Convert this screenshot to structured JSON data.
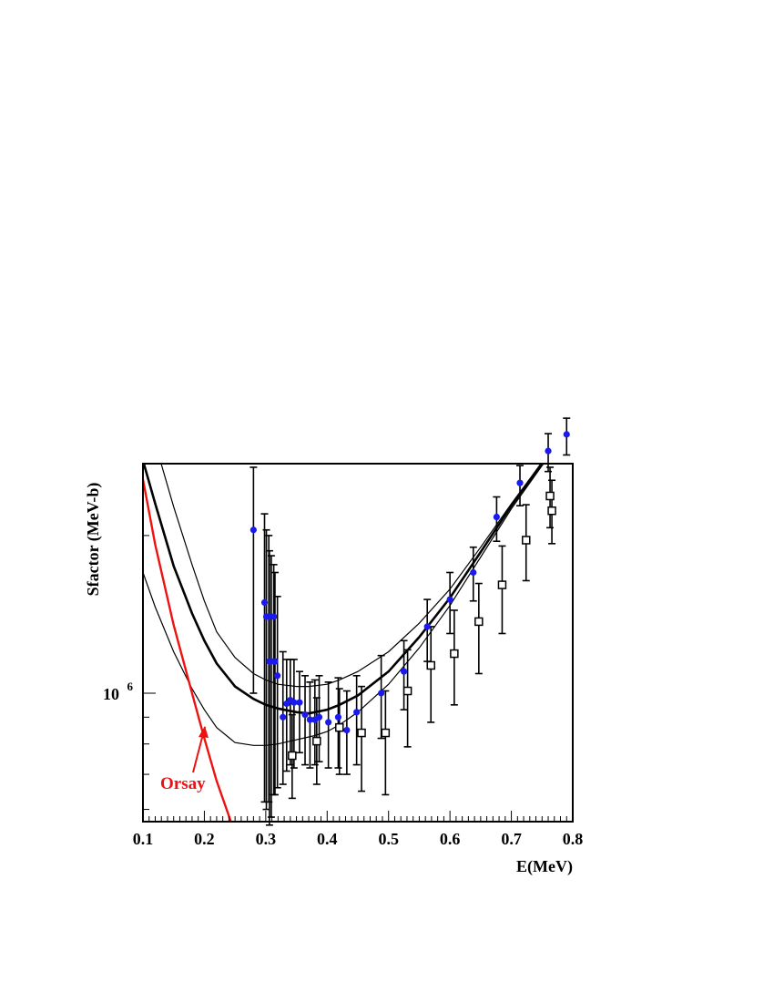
{
  "chart_data": {
    "type": "scatter",
    "xlabel": "E(MeV)",
    "ylabel": "Sfactor (MeV-b)",
    "xlim": [
      0.1,
      0.8
    ],
    "ylim": [
      400000,
      4000000
    ],
    "yscale": "log",
    "x_ticks": [
      "0.1",
      "0.2",
      "0.3",
      "0.4",
      "0.5",
      "0.6",
      "0.7",
      "0.8"
    ],
    "y_tick_label": {
      "base": "10",
      "exponent": "6"
    },
    "grid": false,
    "colors": {
      "circles": "#1a1aee",
      "squares": "#000000",
      "orsay": "#ee1111",
      "fits": "#000000"
    },
    "annotation": {
      "text": "Orsay",
      "color": "#ee1111",
      "points_to": [
        0.195,
        900000
      ]
    },
    "series": [
      {
        "marker": "filled-circle",
        "color": "#1a1aee",
        "points": [
          {
            "x": 0.28,
            "y": 2050000,
            "lo": 1000000,
            "hi": 2700000
          },
          {
            "x": 0.298,
            "y": 1490000,
            "lo": 620000,
            "hi": 2200000
          },
          {
            "x": 0.301,
            "y": 1400000,
            "lo": 600000,
            "hi": 2050000
          },
          {
            "x": 0.305,
            "y": 1400000,
            "lo": 620000,
            "hi": 2000000
          },
          {
            "x": 0.306,
            "y": 1150000,
            "lo": 560000,
            "hi": 1870000
          },
          {
            "x": 0.309,
            "y": 1150000,
            "lo": 580000,
            "hi": 1830000
          },
          {
            "x": 0.313,
            "y": 1400000,
            "lo": 640000,
            "hi": 1760000
          },
          {
            "x": 0.315,
            "y": 1150000,
            "lo": 640000,
            "hi": 1700000
          },
          {
            "x": 0.319,
            "y": 1080000,
            "lo": 660000,
            "hi": 1530000
          },
          {
            "x": 0.328,
            "y": 900000,
            "lo": 670000,
            "hi": 1200000
          },
          {
            "x": 0.334,
            "y": 955000,
            "lo": 710000,
            "hi": 1160000
          },
          {
            "x": 0.34,
            "y": 970000,
            "lo": 730000,
            "hi": 1160000
          },
          {
            "x": 0.346,
            "y": 960000,
            "lo": 720000,
            "hi": 1160000
          },
          {
            "x": 0.355,
            "y": 960000,
            "lo": 770000,
            "hi": 1100000
          },
          {
            "x": 0.364,
            "y": 910000,
            "lo": 730000,
            "hi": 1080000
          },
          {
            "x": 0.372,
            "y": 890000,
            "lo": 720000,
            "hi": 1050000
          },
          {
            "x": 0.38,
            "y": 890000,
            "lo": 730000,
            "hi": 1060000
          },
          {
            "x": 0.387,
            "y": 900000,
            "lo": 740000,
            "hi": 1080000
          },
          {
            "x": 0.402,
            "y": 880000,
            "lo": 720000,
            "hi": 1050000
          },
          {
            "x": 0.418,
            "y": 900000,
            "lo": 720000,
            "hi": 1070000
          },
          {
            "x": 0.432,
            "y": 850000,
            "lo": 700000,
            "hi": 1010000
          },
          {
            "x": 0.448,
            "y": 920000,
            "lo": 730000,
            "hi": 1080000
          },
          {
            "x": 0.488,
            "y": 1000000,
            "lo": 820000,
            "hi": 1180000
          },
          {
            "x": 0.525,
            "y": 1100000,
            "lo": 930000,
            "hi": 1260000
          },
          {
            "x": 0.563,
            "y": 1340000,
            "lo": 1150000,
            "hi": 1510000
          },
          {
            "x": 0.6,
            "y": 1510000,
            "lo": 1300000,
            "hi": 1700000
          },
          {
            "x": 0.638,
            "y": 1700000,
            "lo": 1500000,
            "hi": 1900000
          },
          {
            "x": 0.676,
            "y": 2170000,
            "lo": 1950000,
            "hi": 2370000
          },
          {
            "x": 0.714,
            "y": 2520000,
            "lo": 2280000,
            "hi": 2720000
          },
          {
            "x": 0.76,
            "y": 2900000,
            "lo": 2650000,
            "hi": 3130000
          },
          {
            "x": 0.79,
            "y": 3120000,
            "lo": 2850000,
            "hi": 3350000
          }
        ]
      },
      {
        "marker": "open-square",
        "color": "#000000",
        "points": [
          {
            "x": 0.343,
            "y": 760000,
            "lo": 630000,
            "hi": 910000
          },
          {
            "x": 0.383,
            "y": 810000,
            "lo": 670000,
            "hi": 980000
          },
          {
            "x": 0.42,
            "y": 860000,
            "lo": 700000,
            "hi": 1020000
          },
          {
            "x": 0.456,
            "y": 840000,
            "lo": 650000,
            "hi": 1030000
          },
          {
            "x": 0.495,
            "y": 840000,
            "lo": 640000,
            "hi": 1010000
          },
          {
            "x": 0.531,
            "y": 1010000,
            "lo": 790000,
            "hi": 1210000
          },
          {
            "x": 0.569,
            "y": 1130000,
            "lo": 880000,
            "hi": 1340000
          },
          {
            "x": 0.607,
            "y": 1190000,
            "lo": 950000,
            "hi": 1440000
          },
          {
            "x": 0.647,
            "y": 1370000,
            "lo": 1090000,
            "hi": 1620000
          },
          {
            "x": 0.685,
            "y": 1610000,
            "lo": 1300000,
            "hi": 1910000
          },
          {
            "x": 0.724,
            "y": 1960000,
            "lo": 1640000,
            "hi": 2290000
          },
          {
            "x": 0.763,
            "y": 2380000,
            "lo": 2070000,
            "hi": 2700000
          },
          {
            "x": 0.766,
            "y": 2230000,
            "lo": 1930000,
            "hi": 2550000
          }
        ]
      }
    ],
    "curves": [
      {
        "style": "thick",
        "color": "#000000",
        "points": [
          [
            0.1,
            2780000
          ],
          [
            0.12,
            2300000
          ],
          [
            0.15,
            1750000
          ],
          [
            0.18,
            1420000
          ],
          [
            0.2,
            1260000
          ],
          [
            0.22,
            1140000
          ],
          [
            0.25,
            1030000
          ],
          [
            0.28,
            975000
          ],
          [
            0.3,
            950000
          ],
          [
            0.32,
            935000
          ],
          [
            0.35,
            920000
          ],
          [
            0.37,
            915000
          ],
          [
            0.4,
            930000
          ],
          [
            0.42,
            950000
          ],
          [
            0.45,
            990000
          ],
          [
            0.5,
            1100000
          ],
          [
            0.55,
            1280000
          ],
          [
            0.6,
            1520000
          ],
          [
            0.65,
            1860000
          ],
          [
            0.7,
            2280000
          ],
          [
            0.75,
            2750000
          ],
          [
            0.78,
            3000000
          ],
          [
            0.79,
            3080000
          ],
          [
            0.795,
            3220000
          ],
          [
            0.798,
            3600000
          ],
          [
            0.8,
            4000000
          ]
        ]
      },
      {
        "style": "thin-upper",
        "color": "#000000",
        "points": [
          [
            0.1,
            3700000
          ],
          [
            0.12,
            3000000
          ],
          [
            0.15,
            2270000
          ],
          [
            0.18,
            1760000
          ],
          [
            0.2,
            1500000
          ],
          [
            0.22,
            1310000
          ],
          [
            0.25,
            1170000
          ],
          [
            0.28,
            1090000
          ],
          [
            0.3,
            1060000
          ],
          [
            0.32,
            1040000
          ],
          [
            0.35,
            1030000
          ],
          [
            0.37,
            1030000
          ],
          [
            0.4,
            1040000
          ],
          [
            0.42,
            1060000
          ],
          [
            0.45,
            1100000
          ],
          [
            0.5,
            1200000
          ],
          [
            0.55,
            1360000
          ],
          [
            0.6,
            1580000
          ],
          [
            0.65,
            1900000
          ],
          [
            0.7,
            2300000
          ],
          [
            0.75,
            2760000
          ],
          [
            0.78,
            3020000
          ],
          [
            0.79,
            3120000
          ],
          [
            0.795,
            3280000
          ],
          [
            0.798,
            3700000
          ],
          [
            0.8,
            4000000
          ]
        ]
      },
      {
        "style": "thin-lower",
        "color": "#000000",
        "points": [
          [
            0.1,
            1700000
          ],
          [
            0.12,
            1460000
          ],
          [
            0.15,
            1200000
          ],
          [
            0.18,
            1020000
          ],
          [
            0.2,
            930000
          ],
          [
            0.22,
            860000
          ],
          [
            0.25,
            805000
          ],
          [
            0.28,
            795000
          ],
          [
            0.3,
            795000
          ],
          [
            0.32,
            800000
          ],
          [
            0.35,
            815000
          ],
          [
            0.38,
            830000
          ],
          [
            0.4,
            845000
          ],
          [
            0.42,
            870000
          ],
          [
            0.45,
            920000
          ],
          [
            0.5,
            1040000
          ],
          [
            0.55,
            1220000
          ],
          [
            0.6,
            1470000
          ],
          [
            0.65,
            1820000
          ],
          [
            0.7,
            2250000
          ],
          [
            0.75,
            2720000
          ],
          [
            0.78,
            2960000
          ],
          [
            0.79,
            3020000
          ],
          [
            0.795,
            3100000
          ],
          [
            0.798,
            3300000
          ],
          [
            0.8,
            3900000
          ]
        ]
      },
      {
        "style": "red-orsay",
        "color": "#ee1111",
        "points": [
          [
            0.1,
            2560000
          ],
          [
            0.12,
            1920000
          ],
          [
            0.15,
            1350000
          ],
          [
            0.18,
            1000000
          ],
          [
            0.2,
            820000
          ],
          [
            0.22,
            680000
          ],
          [
            0.25,
            540000
          ],
          [
            0.28,
            425000
          ],
          [
            0.285,
            400000
          ]
        ]
      }
    ]
  }
}
